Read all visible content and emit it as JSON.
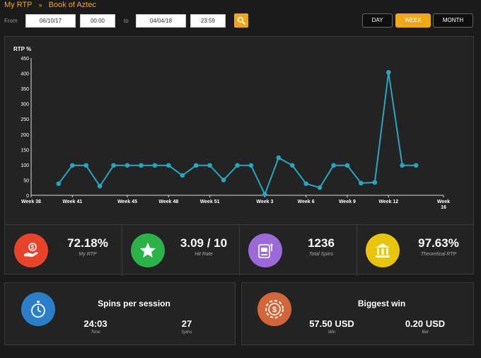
{
  "breadcrumb": {
    "root": "My RTP",
    "sep": "»",
    "game": "Book of Aztec"
  },
  "filter": {
    "from_label": "From",
    "from_date": "06/10/17",
    "from_time": "00:00",
    "to_label": "to",
    "to_date": "04/04/18",
    "to_time": "23:59"
  },
  "tabs": {
    "day": "DAY",
    "week": "WEEK",
    "month": "MONTH",
    "active": "week"
  },
  "chart_data": {
    "type": "line",
    "ylabel": "RTP %",
    "ylim": [
      0,
      450
    ],
    "yticks": [
      0,
      50,
      100,
      150,
      200,
      250,
      300,
      350,
      400,
      450
    ],
    "xtick_labels": [
      "Week 38",
      "Week 41",
      "Week 45",
      "Week 48",
      "Week 51",
      "Week 3",
      "Week 6",
      "Week 9",
      "Week 12",
      "Week 16"
    ],
    "x": [
      40,
      41,
      42,
      43,
      44,
      45,
      46,
      47,
      48,
      49,
      50,
      51,
      52,
      1,
      2,
      3,
      4,
      5,
      6,
      7,
      8,
      9,
      10,
      11,
      12,
      13,
      14
    ],
    "values": [
      38,
      98,
      98,
      30,
      98,
      98,
      98,
      98,
      98,
      65,
      98,
      98,
      50,
      98,
      98,
      3,
      123,
      98,
      38,
      25,
      98,
      98,
      40,
      42,
      403,
      98,
      98
    ],
    "color": "#2aa5c0",
    "grid": false
  },
  "stats": [
    {
      "value": "72.18%",
      "label": "My RTP",
      "color": "#e8442b",
      "icon": "hand-money-icon"
    },
    {
      "value": "3.09 / 10",
      "label": "Hit Rate",
      "color": "#2db24a",
      "icon": "star-icon"
    },
    {
      "value": "1236",
      "label": "Total Spins",
      "color": "#9b6ad8",
      "icon": "slot-machine-icon"
    },
    {
      "value": "97.63%",
      "label": "Theoretical RTP",
      "color": "#e8c40e",
      "icon": "bank-icon"
    }
  ],
  "session": {
    "title": "Spins per session",
    "time_value": "24:03",
    "time_label": "Time",
    "spins_value": "27",
    "spins_label": "Spins",
    "color": "#2a7fc8"
  },
  "biggest": {
    "title": "Biggest win",
    "win_value": "57.50 USD",
    "win_label": "Win",
    "bet_value": "0.20 USD",
    "bet_label": "Bet",
    "color": "#d0663a"
  }
}
